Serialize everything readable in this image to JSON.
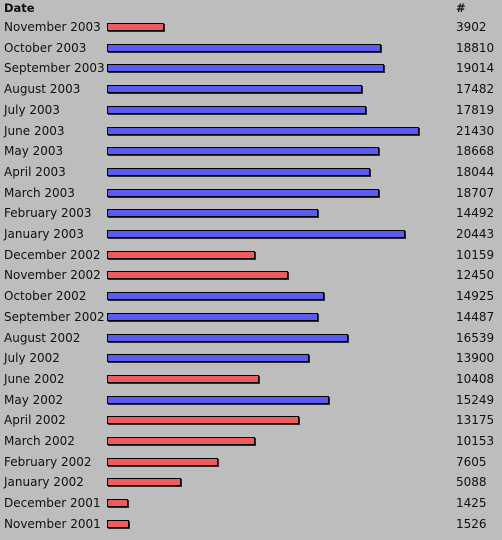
{
  "header": {
    "date_label": "Date",
    "count_label": "#"
  },
  "colors": {
    "above_threshold": "#5b5bef",
    "below_threshold": "#ef5b5b",
    "background": "#bdbdbd"
  },
  "chart_data": {
    "type": "bar",
    "orientation": "horizontal",
    "categories": [
      "November 2003",
      "October 2003",
      "September 2003",
      "August 2003",
      "July 2003",
      "June 2003",
      "May 2003",
      "April 2003",
      "March 2003",
      "February 2003",
      "January 2003",
      "December 2002",
      "November 2002",
      "October 2002",
      "September 2002",
      "August 2002",
      "July 2002",
      "June 2002",
      "May 2002",
      "April 2002",
      "March 2002",
      "February 2002",
      "January 2002",
      "December 2001",
      "November 2001"
    ],
    "values": [
      3902,
      18810,
      19014,
      17482,
      17819,
      21430,
      18668,
      18044,
      18707,
      14492,
      20443,
      10159,
      12450,
      14925,
      14487,
      16539,
      13900,
      10408,
      15249,
      13175,
      10153,
      7605,
      5088,
      1425,
      1526
    ],
    "bar_colors": [
      "red",
      "blue",
      "blue",
      "blue",
      "blue",
      "blue",
      "blue",
      "blue",
      "blue",
      "blue",
      "blue",
      "red",
      "red",
      "blue",
      "blue",
      "blue",
      "blue",
      "red",
      "blue",
      "red",
      "red",
      "red",
      "red",
      "red",
      "red"
    ],
    "xlim": [
      0,
      21430
    ],
    "grid": false,
    "legend": "none"
  }
}
